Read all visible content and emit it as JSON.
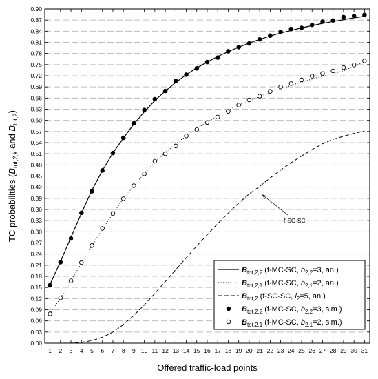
{
  "chart_data": {
    "type": "line",
    "title": "",
    "xlabel": "Offered traffic-load points",
    "ylabel": {
      "prefix": "TC probabilities (",
      "b1": "B",
      "b1_sub": "tot,2,k",
      "mid": " and ",
      "b2": "B",
      "b2_sub": "tot,2",
      "suffix": ")"
    },
    "xlim": [
      0.5,
      31.5
    ],
    "ylim": [
      0,
      0.9
    ],
    "x_ticks": [
      1,
      2,
      3,
      4,
      5,
      6,
      7,
      8,
      9,
      10,
      11,
      12,
      13,
      14,
      15,
      16,
      17,
      18,
      19,
      20,
      21,
      22,
      23,
      24,
      25,
      26,
      27,
      28,
      29,
      30,
      31
    ],
    "y_ticks": [
      "0.00",
      "0.03",
      "0.06",
      "0.09",
      "0.12",
      "0.15",
      "0.18",
      "0.21",
      "0.24",
      "0.27",
      "0.30",
      "0.33",
      "0.36",
      "0.39",
      "0.42",
      "0.45",
      "0.48",
      "0.51",
      "0.54",
      "0.57",
      "0.60",
      "0.63",
      "0.66",
      "0.69",
      "0.72",
      "0.75",
      "0.78",
      "0.81",
      "0.84",
      "0.87",
      "0.90"
    ],
    "grid": "horizontal dashed",
    "legend_position": "bottom-right",
    "annotation": {
      "text": "f-SC-SC",
      "x": 21,
      "y": 0.405
    },
    "series": [
      {
        "style": "solid",
        "legend": {
          "main": "B",
          "sub": "tot,2,2",
          "desc_pre": " (f-MC-SC, ",
          "desc_var": "b",
          "desc_var_sub": "2,2",
          "desc_post": "=3, an.)"
        },
        "x": [
          1,
          2,
          3,
          4,
          5,
          6,
          7,
          8,
          9,
          10,
          11,
          12,
          13,
          14,
          15,
          16,
          17,
          18,
          19,
          20,
          21,
          22,
          23,
          24,
          25,
          26,
          27,
          28,
          29,
          30,
          31
        ],
        "y": [
          0.158,
          0.22,
          0.285,
          0.35,
          0.412,
          0.465,
          0.512,
          0.552,
          0.59,
          0.623,
          0.653,
          0.679,
          0.702,
          0.723,
          0.741,
          0.757,
          0.772,
          0.785,
          0.797,
          0.808,
          0.818,
          0.827,
          0.835,
          0.842,
          0.849,
          0.855,
          0.861,
          0.866,
          0.871,
          0.876,
          0.88
        ]
      },
      {
        "style": "dotted",
        "legend": {
          "main": "B",
          "sub": "tot,2,1",
          "desc_pre": " (f-MC-SC, ",
          "desc_var": "b",
          "desc_var_sub": "2,1",
          "desc_post": "=2, an.)"
        },
        "x": [
          1,
          2,
          3,
          4,
          5,
          6,
          7,
          8,
          9,
          10,
          11,
          12,
          13,
          14,
          15,
          16,
          17,
          18,
          19,
          20,
          21,
          22,
          23,
          24,
          25,
          26,
          27,
          28,
          29,
          30,
          31
        ],
        "y": [
          0.079,
          0.122,
          0.168,
          0.215,
          0.262,
          0.307,
          0.349,
          0.389,
          0.424,
          0.457,
          0.487,
          0.513,
          0.537,
          0.558,
          0.578,
          0.596,
          0.612,
          0.627,
          0.641,
          0.653,
          0.664,
          0.675,
          0.685,
          0.694,
          0.703,
          0.711,
          0.719,
          0.726,
          0.733,
          0.746,
          0.757
        ]
      },
      {
        "style": "dashed",
        "legend": {
          "main": "B",
          "sub": "tot,2",
          "desc_pre": " (f-SC-SC, ",
          "desc_var": "l",
          "desc_var_sub": "2",
          "desc_post": "=5, an.)"
        },
        "x": [
          1,
          2,
          3,
          4,
          5,
          6,
          7,
          8,
          9,
          10,
          11,
          12,
          13,
          14,
          15,
          16,
          17,
          18,
          19,
          20,
          21,
          22,
          23,
          24,
          25,
          26,
          27,
          28,
          29,
          30,
          31
        ],
        "y": [
          0.0,
          0.0,
          0.0003,
          0.002,
          0.007,
          0.016,
          0.03,
          0.05,
          0.075,
          0.103,
          0.134,
          0.166,
          0.198,
          0.23,
          0.262,
          0.292,
          0.322,
          0.35,
          0.377,
          0.402,
          0.422,
          0.445,
          0.466,
          0.486,
          0.504,
          0.521,
          0.537,
          0.549,
          0.557,
          0.565,
          0.571
        ]
      },
      {
        "style": "filled-marker",
        "legend": {
          "main": "B",
          "sub": "tot,2,2",
          "desc_pre": " (f-MC-SC, ",
          "desc_var": "b",
          "desc_var_sub": "2,2",
          "desc_post": "=3, sim.)"
        },
        "x": [
          1,
          2,
          3,
          4,
          5,
          6,
          7,
          8,
          9,
          10,
          11,
          12,
          13,
          14,
          15,
          16,
          17,
          18,
          19,
          20,
          21,
          22,
          23,
          24,
          25,
          26,
          27,
          28,
          29,
          30,
          31
        ],
        "y": [
          0.156,
          0.218,
          0.282,
          0.351,
          0.409,
          0.465,
          0.512,
          0.553,
          0.592,
          0.628,
          0.657,
          0.679,
          0.706,
          0.723,
          0.74,
          0.757,
          0.769,
          0.786,
          0.797,
          0.807,
          0.818,
          0.828,
          0.838,
          0.846,
          0.849,
          0.857,
          0.866,
          0.869,
          0.878,
          0.881,
          0.884
        ]
      },
      {
        "style": "open-marker",
        "legend": {
          "main": "B",
          "sub": "tot,2,1",
          "desc_pre": " (f-MC-SC, ",
          "desc_var": "b",
          "desc_var_sub": "2,1",
          "desc_post": "=2, sim.)"
        },
        "x": [
          1,
          2,
          3,
          4,
          5,
          6,
          7,
          8,
          9,
          10,
          11,
          12,
          13,
          14,
          15,
          16,
          17,
          18,
          19,
          20,
          21,
          22,
          23,
          24,
          25,
          26,
          27,
          28,
          29,
          30,
          31
        ],
        "y": [
          0.079,
          0.122,
          0.168,
          0.217,
          0.263,
          0.309,
          0.349,
          0.389,
          0.424,
          0.456,
          0.49,
          0.51,
          0.531,
          0.558,
          0.575,
          0.594,
          0.609,
          0.624,
          0.641,
          0.655,
          0.665,
          0.678,
          0.69,
          0.699,
          0.709,
          0.719,
          0.726,
          0.733,
          0.742,
          0.749,
          0.76
        ]
      }
    ]
  }
}
